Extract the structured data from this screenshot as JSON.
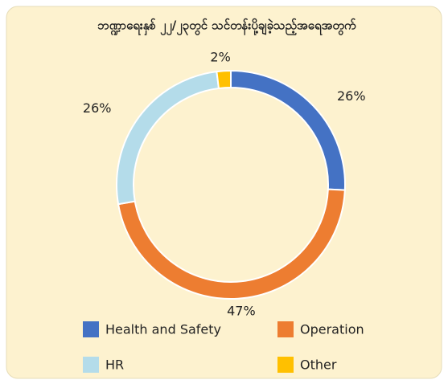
{
  "chart_data": {
    "type": "donut",
    "title": "ဘဏ္ဍာရေးနှစ် ၂၂/၂၃တွင် သင်တန်းပို့ချခဲ့သည့်အရေအတွက်",
    "categories": [
      "Health and Safety",
      "Operation",
      "HR",
      "Other"
    ],
    "values": [
      26,
      47,
      26,
      2
    ],
    "value_labels": [
      "26%",
      "47%",
      "26%",
      "2%"
    ],
    "colors": [
      "#4472c4",
      "#ed7d31",
      "#b4dcea",
      "#ffc000"
    ],
    "legend": "bottom"
  }
}
